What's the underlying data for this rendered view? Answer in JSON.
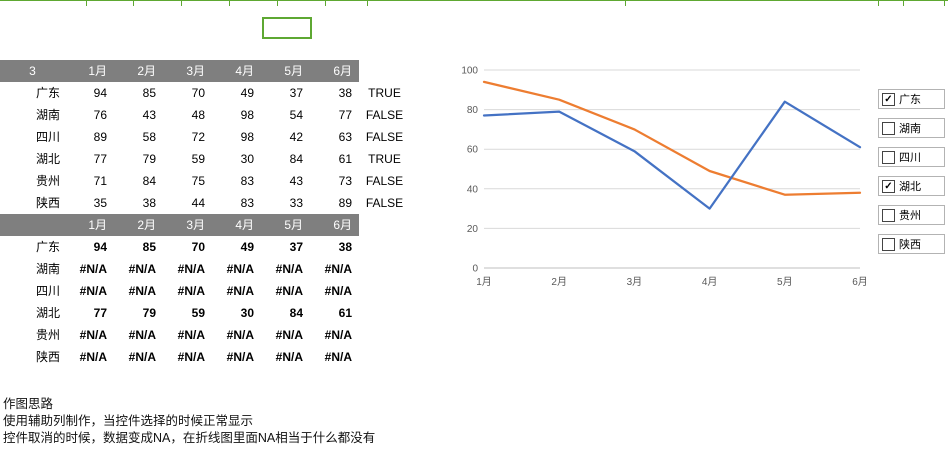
{
  "colors": {
    "table_header_bg": "#7f7f7f",
    "selection_green": "#5ea832",
    "gridline": "#d9d9d9",
    "axis_line": "#bfbfbf",
    "tick_text": "#595959"
  },
  "table1": {
    "header_first": "3",
    "months": [
      "1月",
      "2月",
      "3月",
      "4月",
      "5月",
      "6月"
    ],
    "rows": [
      {
        "name": "广东",
        "values": [
          "94",
          "85",
          "70",
          "49",
          "37",
          "38"
        ],
        "flag": "TRUE"
      },
      {
        "name": "湖南",
        "values": [
          "76",
          "43",
          "48",
          "98",
          "54",
          "77"
        ],
        "flag": "FALSE"
      },
      {
        "name": "四川",
        "values": [
          "89",
          "58",
          "72",
          "98",
          "42",
          "63"
        ],
        "flag": "FALSE"
      },
      {
        "name": "湖北",
        "values": [
          "77",
          "79",
          "59",
          "30",
          "84",
          "61"
        ],
        "flag": "TRUE"
      },
      {
        "name": "贵州",
        "values": [
          "71",
          "84",
          "75",
          "83",
          "43",
          "73"
        ],
        "flag": "FALSE"
      },
      {
        "name": "陕西",
        "values": [
          "35",
          "38",
          "44",
          "83",
          "33",
          "89"
        ],
        "flag": "FALSE"
      }
    ]
  },
  "table2": {
    "header_first": "",
    "months": [
      "1月",
      "2月",
      "3月",
      "4月",
      "5月",
      "6月"
    ],
    "rows": [
      {
        "name": "广东",
        "values": [
          "94",
          "85",
          "70",
          "49",
          "37",
          "38"
        ]
      },
      {
        "name": "湖南",
        "values": [
          "#N/A",
          "#N/A",
          "#N/A",
          "#N/A",
          "#N/A",
          "#N/A"
        ]
      },
      {
        "name": "四川",
        "values": [
          "#N/A",
          "#N/A",
          "#N/A",
          "#N/A",
          "#N/A",
          "#N/A"
        ]
      },
      {
        "name": "湖北",
        "values": [
          "77",
          "79",
          "59",
          "30",
          "84",
          "61"
        ]
      },
      {
        "name": "贵州",
        "values": [
          "#N/A",
          "#N/A",
          "#N/A",
          "#N/A",
          "#N/A",
          "#N/A"
        ]
      },
      {
        "name": "陕西",
        "values": [
          "#N/A",
          "#N/A",
          "#N/A",
          "#N/A",
          "#N/A",
          "#N/A"
        ]
      }
    ]
  },
  "chart_data": {
    "type": "line",
    "x": [
      "1月",
      "2月",
      "3月",
      "4月",
      "5月",
      "6月"
    ],
    "series": [
      {
        "name": "广东",
        "color": "#ed7d31",
        "values": [
          94,
          85,
          70,
          49,
          37,
          38
        ]
      },
      {
        "name": "湖北",
        "color": "#4472c4",
        "values": [
          77,
          79,
          59,
          30,
          84,
          61
        ]
      }
    ],
    "ylim": [
      0,
      100
    ],
    "yticks": [
      0,
      20,
      40,
      60,
      80,
      100
    ],
    "grid": true,
    "legend": "none"
  },
  "checkboxes": [
    {
      "label": "广东",
      "checked": true
    },
    {
      "label": "湖南",
      "checked": false
    },
    {
      "label": "四川",
      "checked": false
    },
    {
      "label": "湖北",
      "checked": true
    },
    {
      "label": "贵州",
      "checked": false
    },
    {
      "label": "陕西",
      "checked": false
    }
  ],
  "notes": [
    "作图思路",
    "使用辅助列制作，当控件选择的时候正常显示",
    "控件取消的时候，数据变成NA，在折线图里面NA相当于什么都没有"
  ]
}
